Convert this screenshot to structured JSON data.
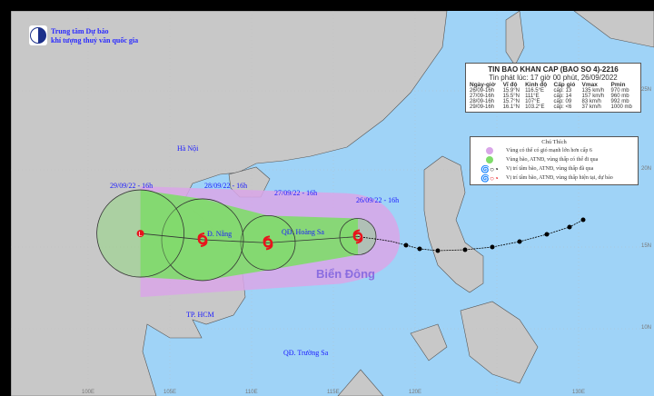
{
  "header": {
    "org_line1": "Trung tâm Dự báo",
    "org_line2": "khí tượng thuỷ văn quốc gia"
  },
  "bulletin": {
    "title": "TIN BAO KHAN CAP  (BAO SO 4)-2216",
    "issued": "Tin phát lúc: 17 giờ 00 phút, 26/09/2022",
    "columns": [
      "Ngày-giờ",
      "Vĩ độ",
      "Kinh độ",
      "Cấp gió",
      "Vmax",
      "Pmin"
    ],
    "rows": [
      [
        "26/09-16h",
        "15.9°N",
        "116.5°E",
        "cấp: 13",
        "135 km/h",
        "970 mb"
      ],
      [
        "27/09-16h",
        "15.5°N",
        "111°E",
        "cấp: 14",
        "157 km/h",
        "960 mb"
      ],
      [
        "28/09-16h",
        "15.7°N",
        "107°E",
        "cấp: 09",
        "83 km/h",
        "992 mb"
      ],
      [
        "29/09-16h",
        "16.1°N",
        "103.2°E",
        "cấp: <6",
        "37 km/h",
        "1000 mb"
      ]
    ]
  },
  "legend": {
    "title": "Chú Thích",
    "items": [
      {
        "text": "Vùng có thể có gió mạnh lớn hơn cấp 6",
        "color": "#d9a6e8"
      },
      {
        "text": "Vùng bão, ATNĐ, vùng thấp có thể đi qua",
        "color": "#7fdc6a"
      },
      {
        "text": "Vị trí tâm bão, ATNĐ, vùng thấp đã qua",
        "color": "#000000"
      },
      {
        "text": "Vị trí tâm bão, ATNĐ, vùng thấp hiện tại, dự báo",
        "color": "#e8141c"
      }
    ]
  },
  "forecast_points": [
    {
      "label": "26/09/22 - 16h",
      "lat": 15.9,
      "lon": 116.5,
      "symbol": "typhoon"
    },
    {
      "label": "27/09/22 - 16h",
      "lat": 15.5,
      "lon": 111,
      "symbol": "typhoon"
    },
    {
      "label": "28/09/22 - 16h",
      "lat": 15.7,
      "lon": 107,
      "symbol": "typhoon"
    },
    {
      "label": "29/09/22 - 16h",
      "lat": 16.1,
      "lon": 103.2,
      "symbol": "low"
    }
  ],
  "places": {
    "hanoi": "Hà Nội",
    "danang": "Đ. Nẵng",
    "hoangsa": "QĐ. Hoàng Sa",
    "hcm": "TP. HCM",
    "truongsa": "QĐ. Trường Sa",
    "sea": "Biển Đông"
  },
  "axes": {
    "lat_labels": [
      "25N",
      "20N",
      "15N",
      "10N"
    ],
    "lon_labels": [
      "100E",
      "105E",
      "110E",
      "115E",
      "120E",
      "130E"
    ]
  },
  "colors": {
    "sea": "#9fd3f7",
    "land": "#c8c8c8",
    "wind_zone": "#d9a6e8",
    "storm_zone": "#7fdc6a",
    "current": "#e8141c",
    "past": "#000000"
  }
}
